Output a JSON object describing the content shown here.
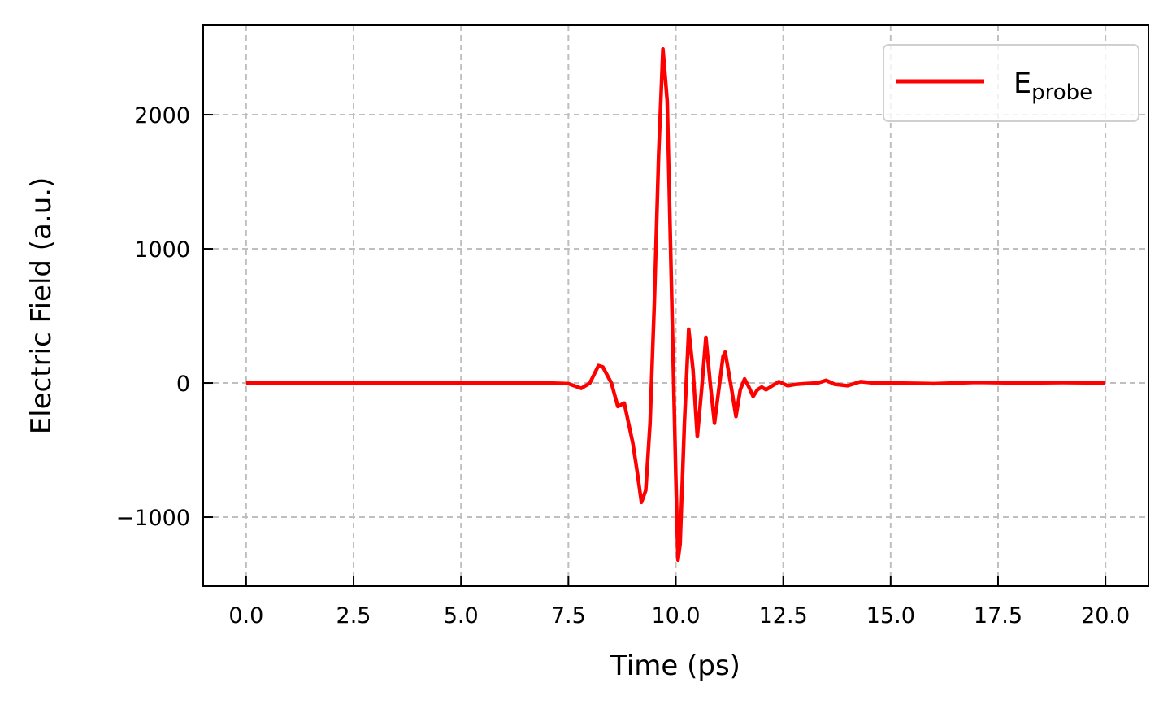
{
  "chart_data": {
    "type": "line",
    "xlabel": "Time (ps)",
    "ylabel": "Electric Field (a.u.)",
    "x": [
      0,
      1,
      2,
      3,
      4,
      5,
      6,
      6.5,
      7.0,
      7.5,
      7.8,
      8.0,
      8.2,
      8.3,
      8.5,
      8.65,
      8.8,
      9.0,
      9.1,
      9.2,
      9.3,
      9.4,
      9.5,
      9.6,
      9.7,
      9.8,
      9.9,
      10.0,
      10.05,
      10.1,
      10.2,
      10.3,
      10.4,
      10.5,
      10.6,
      10.7,
      10.8,
      10.9,
      11.0,
      11.1,
      11.15,
      11.3,
      11.4,
      11.5,
      11.6,
      11.7,
      11.8,
      11.9,
      12.0,
      12.1,
      12.2,
      12.4,
      12.6,
      12.8,
      13.0,
      13.3,
      13.5,
      13.7,
      14.0,
      14.3,
      14.6,
      15,
      16,
      17,
      18,
      19,
      20
    ],
    "series": [
      {
        "name": "E",
        "name_subscript": "probe",
        "color": "#ff0000",
        "values": [
          0,
          0,
          0,
          0,
          0,
          0,
          0,
          0,
          0,
          -5,
          -40,
          0,
          130,
          120,
          0,
          -175,
          -150,
          -450,
          -660,
          -890,
          -800,
          -300,
          600,
          1700,
          2490,
          2100,
          700,
          -700,
          -1320,
          -1200,
          -300,
          400,
          100,
          -400,
          -50,
          340,
          0,
          -300,
          -50,
          200,
          230,
          -50,
          -250,
          -50,
          30,
          -30,
          -100,
          -50,
          -30,
          -50,
          -30,
          10,
          -20,
          -10,
          -5,
          0,
          20,
          -10,
          -20,
          10,
          0,
          0,
          -5,
          5,
          0,
          3,
          0
        ]
      }
    ],
    "xlim": [
      -1.0,
      21.0
    ],
    "xticks": [
      {
        "value": 0,
        "label": "0.0"
      },
      {
        "value": 2.5,
        "label": "2.5"
      },
      {
        "value": 5,
        "label": "5.0"
      },
      {
        "value": 7.5,
        "label": "7.5"
      },
      {
        "value": 10,
        "label": "10.0"
      },
      {
        "value": 12.5,
        "label": "12.5"
      },
      {
        "value": 15,
        "label": "15.0"
      },
      {
        "value": 17.5,
        "label": "17.5"
      },
      {
        "value": 20,
        "label": "20.0"
      }
    ],
    "ylim": [
      -1515,
      2667
    ],
    "yticks": [
      {
        "value": -1000,
        "label": "−1000"
      },
      0,
      1000,
      2000
    ],
    "grid": true,
    "legend": "upper right"
  }
}
